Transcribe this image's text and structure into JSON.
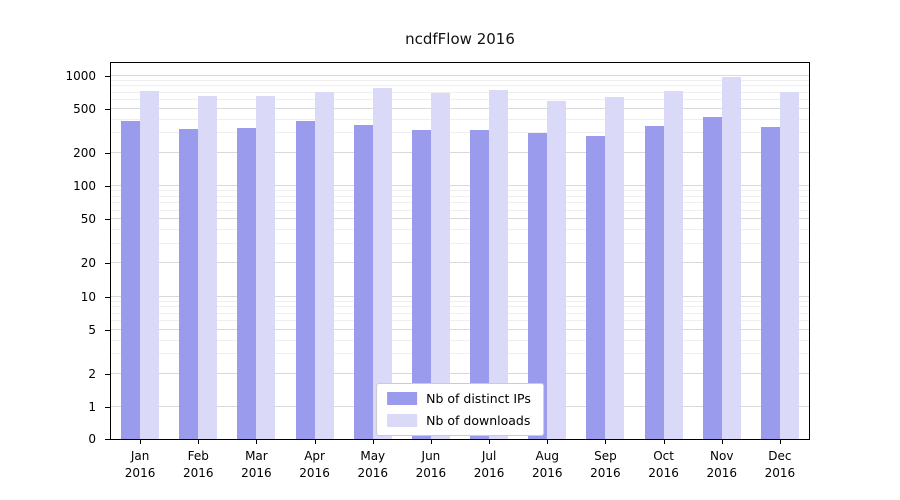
{
  "chart_data": {
    "type": "bar",
    "title": "ncdfFlow 2016",
    "categories": [
      "Jan 2016",
      "Feb 2016",
      "Mar 2016",
      "Apr 2016",
      "May 2016",
      "Jun 2016",
      "Jul 2016",
      "Aug 2016",
      "Sep 2016",
      "Oct 2016",
      "Nov 2016",
      "Dec 2016"
    ],
    "series": [
      {
        "name": "Nb of distinct IPs",
        "color": "#9b9bee",
        "values": [
          390,
          330,
          335,
          385,
          355,
          325,
          325,
          300,
          285,
          350,
          420,
          345
        ]
      },
      {
        "name": "Nb of downloads",
        "color": "#dadaf8",
        "values": [
          730,
          655,
          660,
          710,
          770,
          695,
          745,
          590,
          635,
          725,
          980,
          710
        ]
      }
    ],
    "xlabel": "",
    "ylabel": "",
    "yscale": "log",
    "yticks": [
      0,
      1,
      2,
      5,
      10,
      20,
      50,
      100,
      200,
      500,
      1000
    ],
    "ylim": [
      0,
      1300
    ],
    "grid": true,
    "legend_position": "lower center"
  }
}
